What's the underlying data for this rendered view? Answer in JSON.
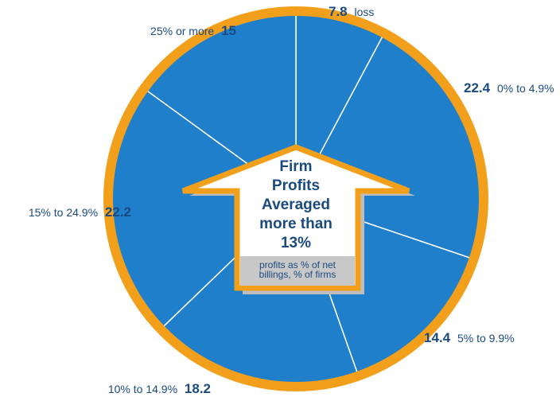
{
  "chart_data": {
    "type": "pie",
    "title": "Firm Profits Averaged more than 13%",
    "subtitle": "profits as % of net billings, % of firms",
    "categories": [
      "loss",
      "0% to 4.9%",
      "5% to 9.9%",
      "10% to 14.9%",
      "15% to 24.9%",
      "25% or more"
    ],
    "values": [
      7.8,
      22.4,
      14.4,
      18.2,
      22.2,
      15
    ],
    "color": "#1f7fcb",
    "border_color": "#f2a01c"
  }
}
